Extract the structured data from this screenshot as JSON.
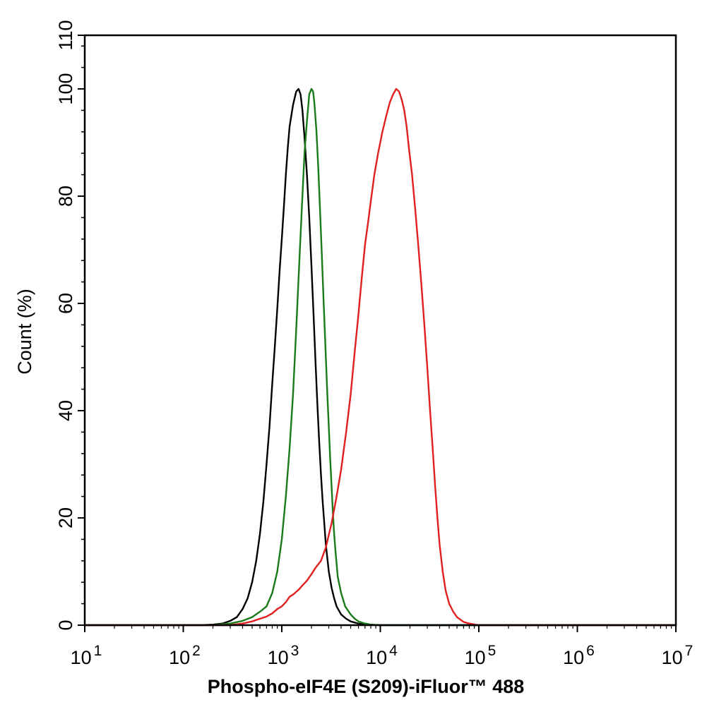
{
  "chart_data": {
    "type": "line",
    "title": "",
    "xlabel": "Phospho-eIF4E (S209)-iFluor™ 488",
    "ylabel": "Count  (%)",
    "x_scale": "log",
    "xlim": [
      10,
      10000000
    ],
    "ylim": [
      0,
      110
    ],
    "grid": false,
    "legend": "none",
    "y_ticks": [
      "0",
      "20",
      "40",
      "60",
      "80",
      "100",
      "110"
    ],
    "y_tick_values": [
      0,
      20,
      40,
      60,
      80,
      100,
      110
    ],
    "x_ticks": [
      {
        "base": "10",
        "exp": "1",
        "value": 10
      },
      {
        "base": "10",
        "exp": "2",
        "value": 100
      },
      {
        "base": "10",
        "exp": "3",
        "value": 1000
      },
      {
        "base": "10",
        "exp": "4",
        "value": 10000
      },
      {
        "base": "10",
        "exp": "5",
        "value": 100000
      },
      {
        "base": "10",
        "exp": "6",
        "value": 1000000
      },
      {
        "base": "10",
        "exp": "7",
        "value": 10000000
      }
    ],
    "series": [
      {
        "color": "#000000",
        "points": [
          [
            10,
            0
          ],
          [
            150,
            0
          ],
          [
            200,
            0.1
          ],
          [
            250,
            0.3
          ],
          [
            300,
            0.8
          ],
          [
            350,
            1.5
          ],
          [
            400,
            3
          ],
          [
            450,
            5
          ],
          [
            500,
            8
          ],
          [
            550,
            12
          ],
          [
            600,
            17
          ],
          [
            650,
            23
          ],
          [
            700,
            30
          ],
          [
            750,
            37
          ],
          [
            800,
            45
          ],
          [
            850,
            52
          ],
          [
            900,
            59
          ],
          [
            950,
            66
          ],
          [
            1000,
            72
          ],
          [
            1050,
            78
          ],
          [
            1100,
            84
          ],
          [
            1150,
            89
          ],
          [
            1200,
            93
          ],
          [
            1300,
            97
          ],
          [
            1400,
            99.5
          ],
          [
            1480,
            100
          ],
          [
            1550,
            99
          ],
          [
            1620,
            96
          ],
          [
            1700,
            91
          ],
          [
            1800,
            84
          ],
          [
            1900,
            76
          ],
          [
            2000,
            67
          ],
          [
            2100,
            58
          ],
          [
            2200,
            49
          ],
          [
            2300,
            41
          ],
          [
            2400,
            34
          ],
          [
            2500,
            28
          ],
          [
            2600,
            23
          ],
          [
            2700,
            19
          ],
          [
            2800,
            15
          ],
          [
            3000,
            10
          ],
          [
            3200,
            7
          ],
          [
            3400,
            5
          ],
          [
            3600,
            3.5
          ],
          [
            4000,
            2
          ],
          [
            4500,
            1.2
          ],
          [
            5000,
            0.7
          ],
          [
            6000,
            0.3
          ],
          [
            7000,
            0.1
          ],
          [
            10000,
            0
          ],
          [
            10000000,
            0
          ]
        ]
      },
      {
        "color": "#1a7a1a",
        "points": [
          [
            10,
            0
          ],
          [
            200,
            0
          ],
          [
            300,
            0.3
          ],
          [
            400,
            0.8
          ],
          [
            500,
            1.5
          ],
          [
            600,
            2.5
          ],
          [
            700,
            3.5
          ],
          [
            800,
            6
          ],
          [
            900,
            10
          ],
          [
            1000,
            16
          ],
          [
            1100,
            24
          ],
          [
            1200,
            33
          ],
          [
            1300,
            43
          ],
          [
            1400,
            55
          ],
          [
            1500,
            67
          ],
          [
            1600,
            78
          ],
          [
            1700,
            88
          ],
          [
            1800,
            94
          ],
          [
            1900,
            99
          ],
          [
            2000,
            100
          ],
          [
            2080,
            99.5
          ],
          [
            2150,
            97
          ],
          [
            2250,
            92
          ],
          [
            2350,
            85
          ],
          [
            2450,
            77
          ],
          [
            2550,
            69
          ],
          [
            2650,
            61
          ],
          [
            2800,
            50
          ],
          [
            2900,
            43
          ],
          [
            3000,
            37
          ],
          [
            3100,
            31
          ],
          [
            3200,
            26
          ],
          [
            3300,
            21
          ],
          [
            3400,
            17
          ],
          [
            3500,
            14
          ],
          [
            3700,
            9
          ],
          [
            4000,
            6
          ],
          [
            4400,
            3.5
          ],
          [
            5000,
            2
          ],
          [
            5500,
            1.2
          ],
          [
            6000,
            0.7
          ],
          [
            7000,
            0.3
          ],
          [
            8000,
            0.1
          ],
          [
            10000,
            0
          ],
          [
            10000000,
            0
          ]
        ]
      },
      {
        "color": "#e02020",
        "points": [
          [
            10,
            0
          ],
          [
            300,
            0
          ],
          [
            400,
            0.3
          ],
          [
            500,
            0.7
          ],
          [
            600,
            1.2
          ],
          [
            700,
            1.6
          ],
          [
            800,
            2.2
          ],
          [
            900,
            3
          ],
          [
            1000,
            3.5
          ],
          [
            1100,
            4.3
          ],
          [
            1200,
            5.3
          ],
          [
            1300,
            5.7
          ],
          [
            1400,
            6.2
          ],
          [
            1500,
            6.7
          ],
          [
            1600,
            7.3
          ],
          [
            1800,
            8.3
          ],
          [
            2000,
            9.5
          ],
          [
            2200,
            10.7
          ],
          [
            2500,
            12
          ],
          [
            2800,
            14.5
          ],
          [
            3200,
            19
          ],
          [
            3600,
            24
          ],
          [
            4000,
            29
          ],
          [
            4500,
            36
          ],
          [
            5000,
            43
          ],
          [
            5500,
            51
          ],
          [
            6000,
            58
          ],
          [
            6500,
            65
          ],
          [
            7000,
            71
          ],
          [
            7500,
            75
          ],
          [
            8000,
            79
          ],
          [
            8700,
            84
          ],
          [
            9500,
            88
          ],
          [
            10500,
            92
          ],
          [
            11500,
            95
          ],
          [
            12500,
            97.5
          ],
          [
            13500,
            99
          ],
          [
            14500,
            100
          ],
          [
            15500,
            99.5
          ],
          [
            16500,
            98
          ],
          [
            17500,
            96
          ],
          [
            18500,
            93
          ],
          [
            19500,
            89
          ],
          [
            21000,
            84
          ],
          [
            22500,
            78
          ],
          [
            24000,
            72
          ],
          [
            26000,
            64
          ],
          [
            28000,
            56
          ],
          [
            30000,
            48
          ],
          [
            32000,
            40
          ],
          [
            34000,
            33
          ],
          [
            36000,
            26
          ],
          [
            38000,
            20
          ],
          [
            40000,
            15
          ],
          [
            43000,
            10
          ],
          [
            46000,
            6.5
          ],
          [
            50000,
            4
          ],
          [
            55000,
            2.5
          ],
          [
            60000,
            1.5
          ],
          [
            70000,
            0.6
          ],
          [
            80000,
            0.3
          ],
          [
            100000,
            0
          ],
          [
            10000000,
            0
          ]
        ]
      }
    ]
  }
}
